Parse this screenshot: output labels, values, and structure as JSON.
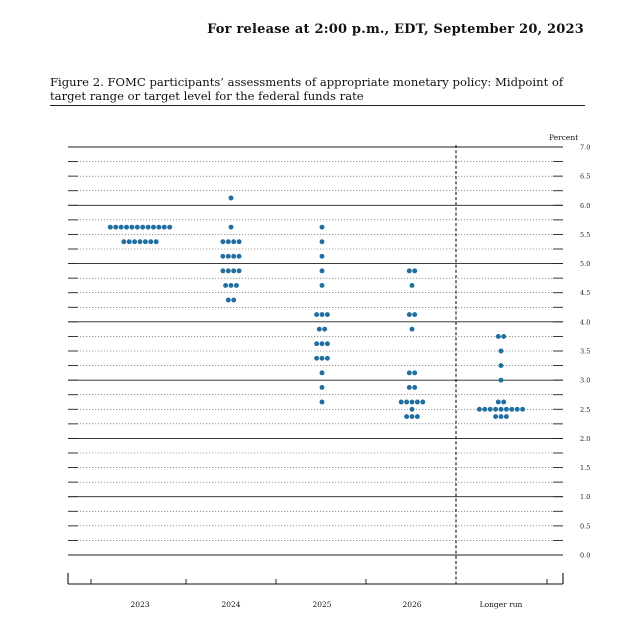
{
  "header": {
    "release_line": "For release at 2:00 p.m., EDT, September 20, 2023"
  },
  "figure": {
    "caption": "Figure 2. FOMC participants’ assessments of appropriate monetary policy: Midpoint of target range or target level for the federal funds rate"
  },
  "chart_data": {
    "type": "scatter",
    "subtype": "dot-plot",
    "title": "",
    "ylabel": "Percent",
    "ylim": [
      0,
      7.0
    ],
    "ytick_labels": [
      "7.0",
      "6.5",
      "6.0",
      "5.5",
      "5.0",
      "4.5",
      "4.0",
      "3.5",
      "3.0",
      "2.5",
      "2.0",
      "1.5",
      "1.0",
      "0.5",
      "0.0"
    ],
    "categories": [
      "2023",
      "2024",
      "2025",
      "2026",
      "Longer run"
    ],
    "grid": true,
    "separator_before": "Longer run",
    "dot_color": "#1f6fa0",
    "series": [
      {
        "category": "2023",
        "points": [
          {
            "y": 5.625,
            "count": 12
          },
          {
            "y": 5.375,
            "count": 7
          }
        ]
      },
      {
        "category": "2024",
        "points": [
          {
            "y": 6.125,
            "count": 1
          },
          {
            "y": 5.625,
            "count": 1
          },
          {
            "y": 5.375,
            "count": 4
          },
          {
            "y": 5.125,
            "count": 4
          },
          {
            "y": 4.875,
            "count": 4
          },
          {
            "y": 4.625,
            "count": 3
          },
          {
            "y": 4.375,
            "count": 2
          }
        ]
      },
      {
        "category": "2025",
        "points": [
          {
            "y": 5.625,
            "count": 1
          },
          {
            "y": 5.375,
            "count": 1
          },
          {
            "y": 5.125,
            "count": 1
          },
          {
            "y": 4.875,
            "count": 1
          },
          {
            "y": 4.625,
            "count": 1
          },
          {
            "y": 4.125,
            "count": 3
          },
          {
            "y": 3.875,
            "count": 2
          },
          {
            "y": 3.625,
            "count": 3
          },
          {
            "y": 3.375,
            "count": 3
          },
          {
            "y": 3.125,
            "count": 1
          },
          {
            "y": 2.875,
            "count": 1
          },
          {
            "y": 2.625,
            "count": 1
          }
        ]
      },
      {
        "category": "2026",
        "points": [
          {
            "y": 4.875,
            "count": 2
          },
          {
            "y": 4.625,
            "count": 1
          },
          {
            "y": 4.125,
            "count": 2
          },
          {
            "y": 3.875,
            "count": 1
          },
          {
            "y": 3.125,
            "count": 2
          },
          {
            "y": 2.875,
            "count": 2
          },
          {
            "y": 2.625,
            "count": 5
          },
          {
            "y": 2.5,
            "count": 1
          },
          {
            "y": 2.375,
            "count": 3
          }
        ]
      },
      {
        "category": "Longer run",
        "points": [
          {
            "y": 3.75,
            "count": 2
          },
          {
            "y": 3.5,
            "count": 1
          },
          {
            "y": 3.25,
            "count": 1
          },
          {
            "y": 3.0,
            "count": 1
          },
          {
            "y": 2.625,
            "count": 2
          },
          {
            "y": 2.5,
            "count": 9
          },
          {
            "y": 2.375,
            "count": 3
          }
        ]
      }
    ]
  }
}
